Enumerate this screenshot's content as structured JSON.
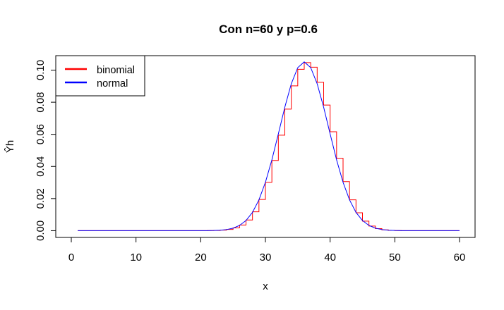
{
  "chart_data": {
    "type": "line",
    "title": "Con n=60 y p=0.6",
    "xlabel": "x",
    "ylabel": "Ŷh",
    "xlim": [
      -2.4,
      62.4
    ],
    "ylim": [
      -0.0042,
      0.109
    ],
    "xticks": [
      0,
      10,
      20,
      30,
      40,
      50,
      60
    ],
    "xtick_labels": [
      "0",
      "10",
      "20",
      "30",
      "40",
      "50",
      "60"
    ],
    "yticks": [
      0.0,
      0.02,
      0.04,
      0.06,
      0.08,
      0.1
    ],
    "ytick_labels": [
      "0.00",
      "0.02",
      "0.04",
      "0.06",
      "0.08",
      "0.10"
    ],
    "grid": false,
    "legend_position": "top-left",
    "colors": {
      "binomial": "#ff0000",
      "normal": "#0000ff",
      "axes": "#000000"
    },
    "n": 60,
    "p": 0.6,
    "series": [
      {
        "name": "binomial",
        "style": "step",
        "x_from": 1,
        "x_to": 60,
        "values": []
      },
      {
        "name": "normal",
        "style": "line",
        "x_from": 1,
        "x_to": 60,
        "values": []
      }
    ],
    "legend": [
      {
        "label": "binomial",
        "color": "#ff0000"
      },
      {
        "label": "normal",
        "color": "#0000ff"
      }
    ]
  }
}
